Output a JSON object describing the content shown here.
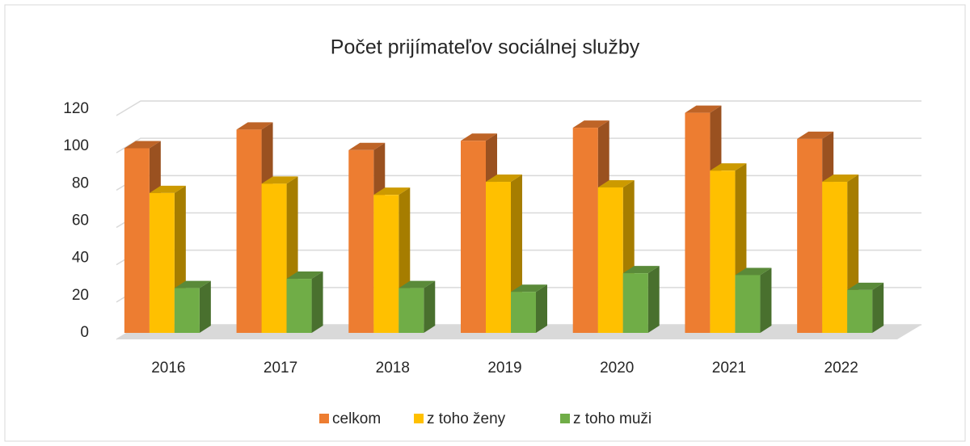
{
  "chart_data": {
    "type": "bar3d",
    "title": "Počet prijímateľov sociálnej služby",
    "categories": [
      "2016",
      "2017",
      "2018",
      "2019",
      "2020",
      "2021",
      "2022"
    ],
    "series": [
      {
        "name": "celkom",
        "color": "#ed7d31",
        "values": [
          99,
          109,
          98,
          103,
          110,
          118,
          104
        ]
      },
      {
        "name": "z toho ženy",
        "color": "#ffc000",
        "values": [
          75,
          80,
          74,
          81,
          78,
          87,
          81
        ]
      },
      {
        "name": "z toho muži",
        "color": "#70ad47",
        "values": [
          24,
          29,
          24,
          22,
          32,
          31,
          23
        ]
      }
    ],
    "ylim": [
      0,
      120
    ],
    "yticks": [
      0,
      20,
      40,
      60,
      80,
      100,
      120
    ],
    "grid": true,
    "legend": "bottom"
  }
}
